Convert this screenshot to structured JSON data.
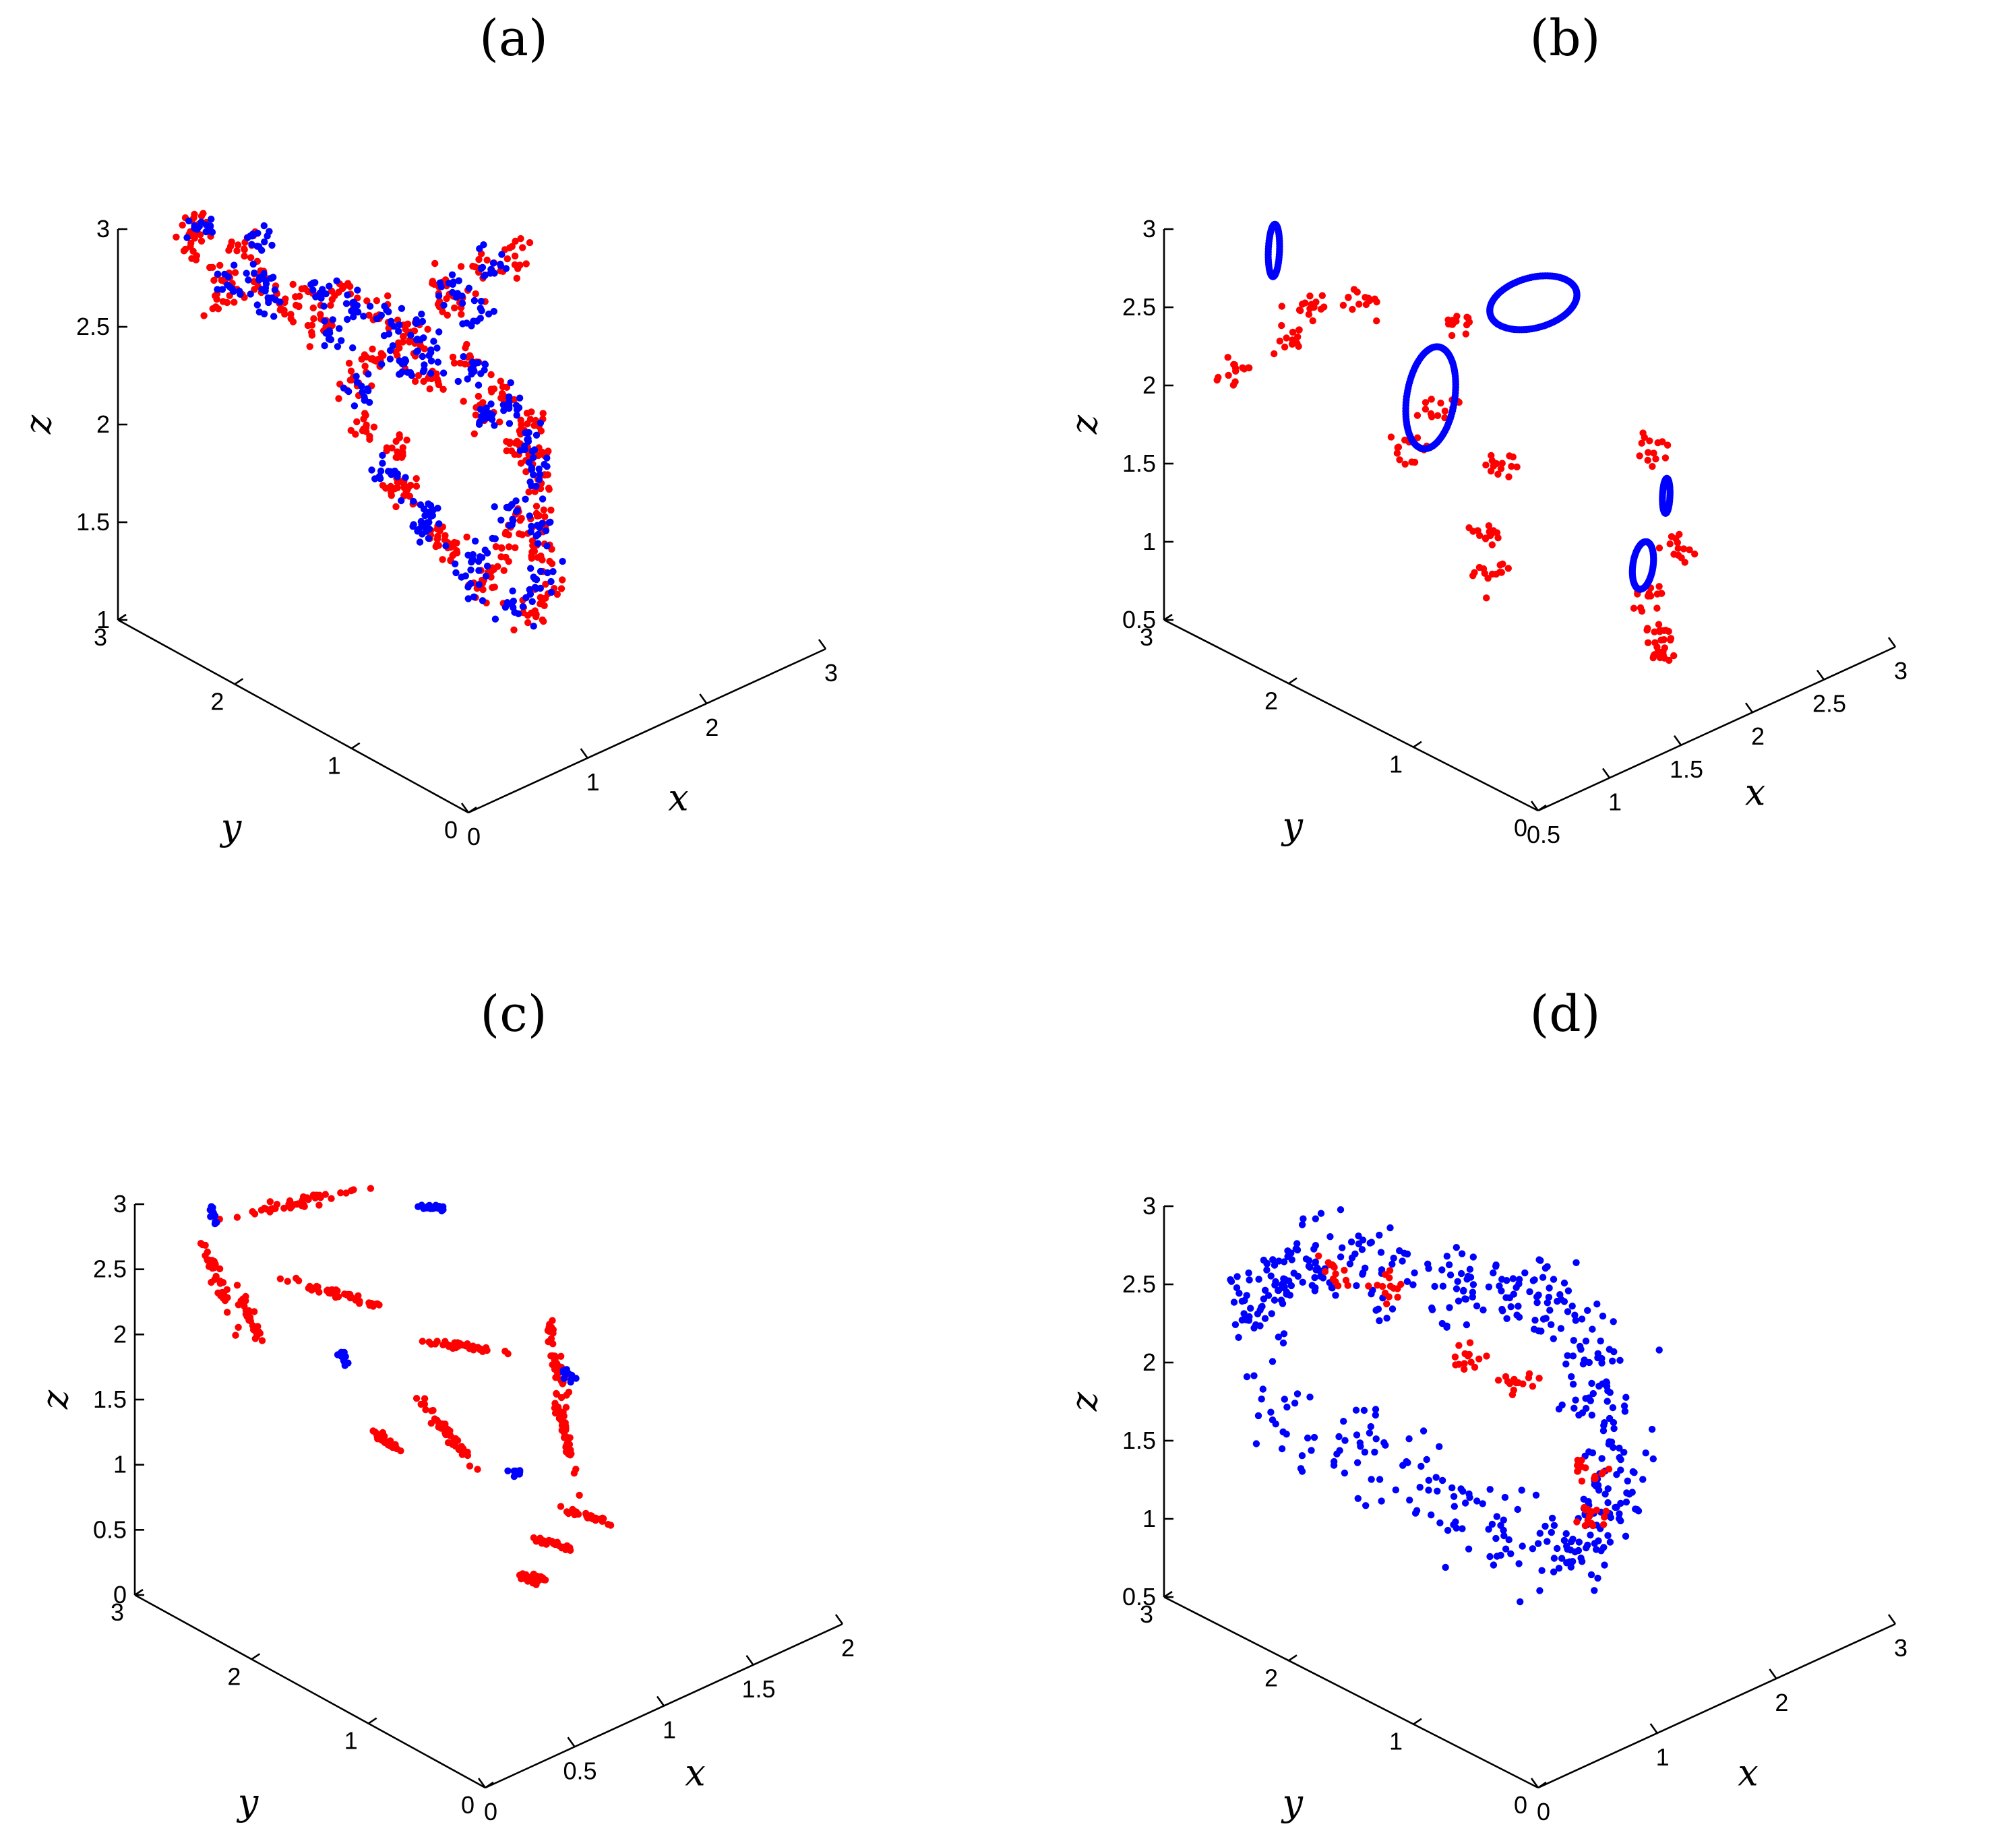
{
  "colors": {
    "series_a": "#ff0000",
    "series_b": "#0000ff",
    "axes": "#000000"
  },
  "chart_data": [
    {
      "type": "scatter",
      "subtype": "scatter3d",
      "title": "(a)",
      "xlabel": "x",
      "ylabel": "y",
      "zlabel": "z",
      "xlim": [
        0,
        3
      ],
      "ylim": [
        0,
        3
      ],
      "zlim": [
        1,
        3
      ],
      "xticks": [
        "0",
        "1",
        "2",
        "3"
      ],
      "yticks": [
        "0",
        "1",
        "2",
        "3"
      ],
      "zticks": [
        "1",
        "1.5",
        "2",
        "2.5",
        "3"
      ],
      "grid": false,
      "series": [
        {
          "color": "#ff0000",
          "points": [
            [
              0.9,
              2.3,
              2.64
            ],
            [
              0.6,
              2.55,
              2.9
            ],
            [
              0.35,
              2.7,
              3.02
            ],
            [
              0.3,
              2.65,
              2.95
            ],
            [
              1.1,
              2.2,
              2.6
            ],
            [
              1.4,
              1.9,
              2.45
            ],
            [
              1.65,
              1.7,
              2.3
            ],
            [
              1.8,
              1.55,
              2.15
            ],
            [
              1.9,
              1.45,
              2.0
            ],
            [
              1.95,
              1.4,
              1.85
            ],
            [
              1.95,
              1.35,
              1.7
            ],
            [
              1.9,
              1.3,
              1.55
            ],
            [
              1.85,
              1.25,
              1.4
            ],
            [
              1.8,
              1.15,
              1.25
            ],
            [
              1.6,
              1.1,
              1.2
            ],
            [
              1.3,
              1.2,
              1.4
            ],
            [
              1.1,
              1.4,
              1.65
            ],
            [
              0.95,
              1.6,
              1.9
            ],
            [
              0.9,
              1.8,
              2.1
            ],
            [
              0.95,
              1.95,
              2.3
            ],
            [
              1.2,
              2.0,
              2.55
            ],
            [
              1.5,
              1.8,
              2.7
            ],
            [
              1.7,
              1.6,
              2.8
            ],
            [
              1.85,
              1.5,
              2.85
            ],
            [
              0.5,
              2.6,
              2.75
            ],
            [
              0.45,
              2.6,
              2.62
            ],
            [
              0.7,
              2.5,
              2.7
            ],
            [
              0.8,
              2.4,
              2.55
            ],
            [
              1.0,
              2.25,
              2.45
            ],
            [
              1.25,
              2.05,
              2.3
            ],
            [
              1.5,
              1.85,
              2.2
            ],
            [
              1.7,
              1.65,
              2.05
            ],
            [
              1.85,
              1.5,
              1.85
            ],
            [
              1.7,
              1.35,
              1.55
            ],
            [
              1.5,
              1.3,
              1.45
            ],
            [
              1.2,
              1.35,
              1.55
            ],
            [
              1.0,
              1.55,
              1.8
            ],
            [
              1.05,
              1.7,
              2.0
            ],
            [
              1.3,
              1.85,
              2.4
            ],
            [
              1.6,
              1.7,
              2.6
            ]
          ]
        },
        {
          "color": "#0000ff",
          "points": [
            [
              0.95,
              2.25,
              2.66
            ],
            [
              0.65,
              2.5,
              2.92
            ],
            [
              0.4,
              2.68,
              3.0
            ],
            [
              1.15,
              2.15,
              2.58
            ],
            [
              1.45,
              1.88,
              2.42
            ],
            [
              1.68,
              1.68,
              2.25
            ],
            [
              1.85,
              1.52,
              2.05
            ],
            [
              1.92,
              1.42,
              1.9
            ],
            [
              1.93,
              1.38,
              1.72
            ],
            [
              1.88,
              1.3,
              1.5
            ],
            [
              1.82,
              1.2,
              1.3
            ],
            [
              1.55,
              1.15,
              1.25
            ],
            [
              1.25,
              1.25,
              1.45
            ],
            [
              1.05,
              1.45,
              1.7
            ],
            [
              0.92,
              1.65,
              1.95
            ],
            [
              0.98,
              1.9,
              2.25
            ],
            [
              1.25,
              1.95,
              2.5
            ],
            [
              1.55,
              1.75,
              2.68
            ],
            [
              1.75,
              1.58,
              2.78
            ],
            [
              0.55,
              2.58,
              2.7
            ],
            [
              0.75,
              2.45,
              2.62
            ],
            [
              1.05,
              2.2,
              2.4
            ],
            [
              1.35,
              1.95,
              2.25
            ],
            [
              1.75,
              1.6,
              2.0
            ],
            [
              1.75,
              1.4,
              1.6
            ],
            [
              1.35,
              1.3,
              1.5
            ],
            [
              1.1,
              1.5,
              1.75
            ],
            [
              1.4,
              1.8,
              2.35
            ],
            [
              1.65,
              1.65,
              2.55
            ],
            [
              0.6,
              2.35,
              2.8
            ]
          ]
        }
      ]
    },
    {
      "type": "scatter",
      "subtype": "scatter3d",
      "title": "(b)",
      "xlabel": "x",
      "ylabel": "y",
      "zlabel": "z",
      "xlim": [
        0.5,
        3
      ],
      "ylim": [
        0,
        3
      ],
      "zlim": [
        0.5,
        3
      ],
      "xticks": [
        "0.5",
        "1",
        "1.5",
        "2",
        "2.5",
        "3"
      ],
      "yticks": [
        "0",
        "1",
        "2",
        "3"
      ],
      "zticks": [
        "0.5",
        "1",
        "1.5",
        "2",
        "2.5",
        "3"
      ],
      "grid": false,
      "series": [
        {
          "color": "#ff0000",
          "points": [
            [
              0.75,
              2.7,
              2.1
            ],
            [
              0.95,
              2.5,
              2.3
            ],
            [
              1.25,
              2.25,
              2.5
            ],
            [
              1.6,
              1.9,
              2.35
            ],
            [
              1.3,
              2.0,
              1.65
            ],
            [
              1.7,
              1.7,
              1.5
            ],
            [
              1.55,
              1.6,
              1.2
            ],
            [
              1.5,
              1.5,
              1.0
            ],
            [
              2.35,
              1.2,
              1.55
            ],
            [
              2.4,
              1.05,
              0.95
            ],
            [
              2.2,
              1.05,
              0.75
            ],
            [
              2.15,
              0.95,
              0.55
            ],
            [
              2.1,
              0.85,
              0.5
            ],
            [
              1.45,
              1.85,
              1.95
            ],
            [
              1.0,
              2.4,
              2.55
            ]
          ]
        },
        {
          "color": "#0000ff",
          "loops": [
            {
              "center": [
                0.92,
                2.6,
                2.85
              ],
              "rx": 0.03,
              "ry": 0.03,
              "rz": 0.15,
              "n": 60
            },
            {
              "center": [
                1.95,
                1.7,
                2.45
              ],
              "rx": 0.25,
              "ry": 0.2,
              "rz": 0.04,
              "n": 110
            },
            {
              "center": [
                1.45,
                1.95,
                1.95
              ],
              "rx": 0.14,
              "ry": 0.12,
              "rz": 0.25,
              "n": 110
            },
            {
              "center": [
                2.4,
                1.15,
                1.25
              ],
              "rx": 0.02,
              "ry": 0.02,
              "rz": 0.1,
              "n": 50
            },
            {
              "center": [
                2.15,
                1.05,
                0.95
              ],
              "rx": 0.06,
              "ry": 0.05,
              "rz": 0.12,
              "n": 70
            }
          ]
        }
      ]
    },
    {
      "type": "scatter",
      "subtype": "scatter3d",
      "title": "(c)",
      "xlabel": "x",
      "ylabel": "y",
      "zlabel": "z",
      "xlim": [
        0,
        2
      ],
      "ylim": [
        0,
        3
      ],
      "zlim": [
        0,
        3
      ],
      "xticks": [
        "0",
        "0.5",
        "1",
        "1.5",
        "2"
      ],
      "yticks": [
        "0",
        "1",
        "2",
        "3"
      ],
      "zticks": [
        "0",
        "0.5",
        "1",
        "1.5",
        "2",
        "2.5",
        "3"
      ],
      "grid": false,
      "series": [
        {
          "color": "#ff0000",
          "clusters": [
            {
              "center": [
                0.2,
                2.6,
                2.5
              ],
              "spread": [
                0.04,
                0.03,
                0.18
              ],
              "n": 40
            },
            {
              "center": [
                0.28,
                2.45,
                2.25
              ],
              "spread": [
                0.03,
                0.03,
                0.12
              ],
              "n": 30
            },
            {
              "center": [
                0.65,
                2.6,
                2.8
              ],
              "spread": [
                0.15,
                0.05,
                0.05
              ],
              "n": 50
            },
            {
              "center": [
                0.62,
                2.25,
                2.3
              ],
              "spread": [
                0.12,
                0.05,
                0.12
              ],
              "n": 45
            },
            {
              "center": [
                1.0,
                1.75,
                1.9
              ],
              "spread": [
                0.1,
                0.04,
                0.08
              ],
              "n": 40
            },
            {
              "center": [
                0.65,
                1.85,
                1.35
              ],
              "spread": [
                0.05,
                0.03,
                0.08
              ],
              "n": 35
            },
            {
              "center": [
                0.92,
                1.75,
                1.3
              ],
              "spread": [
                0.07,
                0.04,
                0.16
              ],
              "n": 45
            },
            {
              "center": [
                1.35,
                1.45,
                1.7
              ],
              "spread": [
                0.03,
                0.03,
                0.18
              ],
              "n": 40
            },
            {
              "center": [
                1.4,
                1.45,
                1.1
              ],
              "spread": [
                0.03,
                0.03,
                0.2
              ],
              "n": 40
            },
            {
              "center": [
                1.35,
                1.2,
                0.65
              ],
              "spread": [
                0.06,
                0.04,
                0.06
              ],
              "n": 30
            },
            {
              "center": [
                1.2,
                1.25,
                0.5
              ],
              "spread": [
                0.06,
                0.03,
                0.06
              ],
              "n": 30
            },
            {
              "center": [
                1.1,
                1.25,
                0.3
              ],
              "spread": [
                0.04,
                0.03,
                0.03
              ],
              "n": 35
            }
          ]
        },
        {
          "color": "#0000ff",
          "clusters": [
            {
              "center": [
                0.25,
                2.72,
                2.9
              ],
              "spread": [
                0.01,
                0.01,
                0.04
              ],
              "n": 12
            },
            {
              "center": [
                1.1,
                2.15,
                2.7
              ],
              "spread": [
                0.03,
                0.02,
                0.02
              ],
              "n": 18
            },
            {
              "center": [
                0.65,
                2.2,
                1.8
              ],
              "spread": [
                0.01,
                0.01,
                0.04
              ],
              "n": 12
            },
            {
              "center": [
                1.45,
                1.5,
                1.5
              ],
              "spread": [
                0.01,
                0.01,
                0.04
              ],
              "n": 10
            },
            {
              "center": [
                1.15,
                1.5,
                0.95
              ],
              "spread": [
                0.015,
                0.01,
                0.02
              ],
              "n": 10
            }
          ]
        }
      ]
    },
    {
      "type": "scatter",
      "subtype": "scatter3d",
      "title": "(d)",
      "xlabel": "x",
      "ylabel": "y",
      "zlabel": "z",
      "xlim": [
        0,
        3
      ],
      "ylim": [
        0,
        3
      ],
      "zlim": [
        0.5,
        3
      ],
      "xticks": [
        "0",
        "1",
        "2",
        "3"
      ],
      "yticks": [
        "0",
        "1",
        "2",
        "3"
      ],
      "zticks": [
        "0.5",
        "1",
        "1.5",
        "2",
        "2.5",
        "3"
      ],
      "grid": false,
      "series": [
        {
          "color": "#0000ff",
          "path": [
            [
              0.3,
              2.6,
              2.3
            ],
            [
              0.45,
              2.55,
              2.55
            ],
            [
              0.7,
              2.45,
              2.65
            ],
            [
              1.0,
              2.25,
              2.55
            ],
            [
              1.3,
              2.0,
              2.45
            ],
            [
              1.6,
              1.8,
              2.4
            ],
            [
              1.9,
              1.6,
              2.3
            ],
            [
              1.95,
              1.4,
              2.0
            ],
            [
              1.95,
              1.3,
              1.6
            ],
            [
              1.9,
              1.2,
              1.25
            ],
            [
              1.75,
              1.2,
              1.0
            ],
            [
              1.5,
              1.3,
              0.95
            ],
            [
              1.2,
              1.5,
              1.1
            ],
            [
              0.9,
              1.8,
              1.4
            ],
            [
              0.6,
              2.2,
              1.6
            ],
            [
              0.35,
              2.55,
              1.9
            ]
          ],
          "n": 520,
          "jitter": 0.12
        },
        {
          "color": "#ff0000",
          "points": [
            [
              0.8,
              2.4,
              2.55
            ],
            [
              1.0,
              2.2,
              2.45
            ],
            [
              1.4,
              1.9,
              2.0
            ],
            [
              1.6,
              1.7,
              1.85
            ],
            [
              1.85,
              1.35,
              1.35
            ],
            [
              1.8,
              1.25,
              1.1
            ]
          ]
        }
      ]
    }
  ]
}
